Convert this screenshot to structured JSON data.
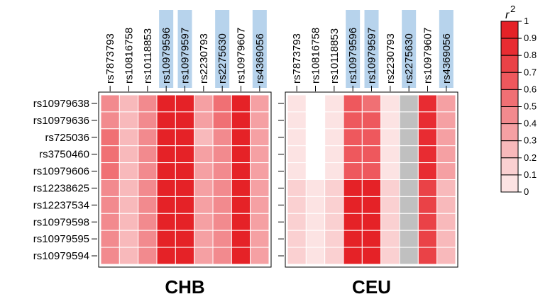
{
  "chart_data": {
    "type": "heatmap",
    "columns": [
      "rs7873793",
      "rs10816758",
      "rs10118853",
      "rs10979596",
      "rs10979597",
      "rs2230793",
      "rs2275630",
      "rs10979607",
      "rs4369056"
    ],
    "highlighted_columns": [
      "rs10979596",
      "rs10979597",
      "rs2275630",
      "rs4369056"
    ],
    "highlight_color": "#b7d3ec",
    "rows": [
      "rs10979638",
      "rs10979636",
      "rs725036",
      "rs3750460",
      "rs10979606",
      "rs12238625",
      "rs12237534",
      "rs10979598",
      "rs10979595",
      "rs10979594"
    ],
    "missing_color": "#c0c0c0",
    "panels": [
      {
        "title": "CHB",
        "values": [
          [
            0.5,
            0.3,
            0.5,
            1.0,
            1.0,
            0.4,
            0.6,
            1.0,
            0.4
          ],
          [
            0.5,
            0.3,
            0.5,
            1.0,
            1.0,
            0.4,
            0.6,
            1.0,
            0.4
          ],
          [
            0.6,
            0.3,
            0.5,
            1.0,
            1.0,
            0.3,
            0.5,
            1.0,
            0.4
          ],
          [
            0.6,
            0.3,
            0.5,
            1.0,
            1.0,
            0.4,
            0.5,
            1.0,
            0.4
          ],
          [
            0.6,
            0.3,
            0.5,
            1.0,
            1.0,
            0.4,
            0.5,
            1.0,
            0.4
          ],
          [
            0.5,
            0.3,
            0.5,
            1.0,
            1.0,
            0.4,
            0.5,
            1.0,
            0.4
          ],
          [
            0.5,
            0.3,
            0.5,
            1.0,
            1.0,
            0.4,
            0.5,
            1.0,
            0.4
          ],
          [
            0.5,
            0.3,
            0.5,
            1.0,
            1.0,
            0.4,
            0.5,
            1.0,
            0.4
          ],
          [
            0.5,
            0.3,
            0.5,
            1.0,
            1.0,
            0.4,
            0.5,
            1.0,
            0.4
          ],
          [
            0.5,
            0.3,
            0.5,
            1.0,
            1.0,
            0.4,
            0.5,
            1.0,
            0.4
          ]
        ]
      },
      {
        "title": "CEU",
        "values": [
          [
            0.1,
            0.0,
            0.1,
            0.7,
            0.6,
            0.1,
            null,
            0.9,
            0.4
          ],
          [
            0.1,
            0.0,
            0.1,
            0.7,
            0.7,
            0.1,
            null,
            0.9,
            0.4
          ],
          [
            0.1,
            0.0,
            0.1,
            0.7,
            0.7,
            0.1,
            null,
            0.9,
            0.4
          ],
          [
            0.1,
            0.0,
            0.1,
            0.7,
            0.7,
            0.1,
            null,
            0.9,
            0.4
          ],
          [
            0.1,
            0.0,
            0.1,
            0.7,
            0.7,
            0.1,
            null,
            0.9,
            0.4
          ],
          [
            0.2,
            0.1,
            0.2,
            1.0,
            1.0,
            0.2,
            null,
            0.8,
            0.3
          ],
          [
            0.2,
            0.1,
            0.2,
            1.0,
            1.0,
            0.2,
            null,
            0.8,
            0.3
          ],
          [
            0.2,
            0.1,
            0.2,
            1.0,
            1.0,
            0.2,
            null,
            0.8,
            0.3
          ],
          [
            0.2,
            0.1,
            0.2,
            1.0,
            1.0,
            0.2,
            null,
            0.8,
            0.3
          ],
          [
            0.2,
            0.1,
            0.2,
            1.0,
            1.0,
            0.2,
            null,
            0.8,
            0.3
          ]
        ]
      }
    ],
    "legend": {
      "title": "r",
      "title_superscript": "2",
      "ticks": [
        "0",
        "0.1",
        "0.2",
        "0.3",
        "0.4",
        "0.5",
        "0.6",
        "0.7",
        "0.8",
        "0.9",
        "1"
      ],
      "colors": [
        "#ffffff",
        "#fce3e3",
        "#fad0d1",
        "#f8b9bb",
        "#f5a0a3",
        "#f28a8e",
        "#f07074",
        "#ee585d",
        "#ea4247",
        "#e82c32",
        "#e52227"
      ]
    },
    "grid": true
  }
}
